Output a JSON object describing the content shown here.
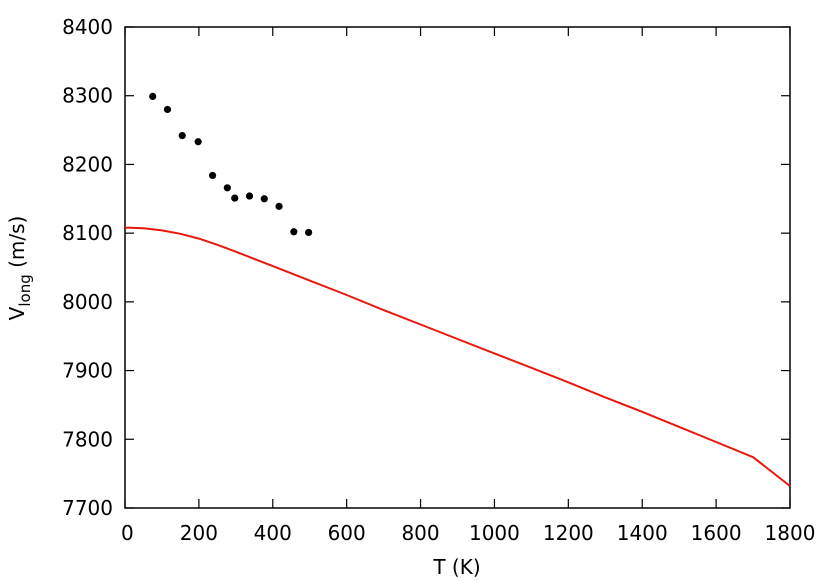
{
  "chart_data": {
    "type": "scatter",
    "title": "",
    "xlabel": "T (K)",
    "ylabel": {
      "main": "V",
      "subscript": "long",
      "unit": " (m/s)"
    },
    "xlim": [
      0,
      1800
    ],
    "ylim": [
      7700,
      8400
    ],
    "xticks": [
      0,
      200,
      400,
      600,
      800,
      1000,
      1200,
      1400,
      1600,
      1800
    ],
    "yticks": [
      7700,
      7800,
      7900,
      8000,
      8100,
      8200,
      8300,
      8400
    ],
    "grid": false,
    "legend": "none",
    "series": [
      {
        "type": "scatter",
        "color": "#000000",
        "points": [
          [
            75,
            8299
          ],
          [
            115,
            8280
          ],
          [
            155,
            8242
          ],
          [
            198,
            8233
          ],
          [
            237,
            8184
          ],
          [
            277,
            8166
          ],
          [
            297,
            8151
          ],
          [
            337,
            8154
          ],
          [
            377,
            8150
          ],
          [
            417,
            8139
          ],
          [
            457,
            8102
          ],
          [
            497,
            8101
          ]
        ]
      },
      {
        "type": "line",
        "color": "#e8190c",
        "points": [
          [
            0,
            8108
          ],
          [
            50,
            8107
          ],
          [
            100,
            8104
          ],
          [
            150,
            8099
          ],
          [
            200,
            8092
          ],
          [
            250,
            8083
          ],
          [
            300,
            8073
          ],
          [
            400,
            8052
          ],
          [
            500,
            8031
          ],
          [
            600,
            8010
          ],
          [
            700,
            7988
          ],
          [
            800,
            7967
          ],
          [
            900,
            7946
          ],
          [
            1000,
            7925
          ],
          [
            1100,
            7904
          ],
          [
            1200,
            7883
          ],
          [
            1300,
            7861
          ],
          [
            1400,
            7840
          ],
          [
            1500,
            7818
          ],
          [
            1600,
            7796
          ],
          [
            1700,
            7774
          ],
          [
            1800,
            7732
          ]
        ]
      }
    ]
  }
}
